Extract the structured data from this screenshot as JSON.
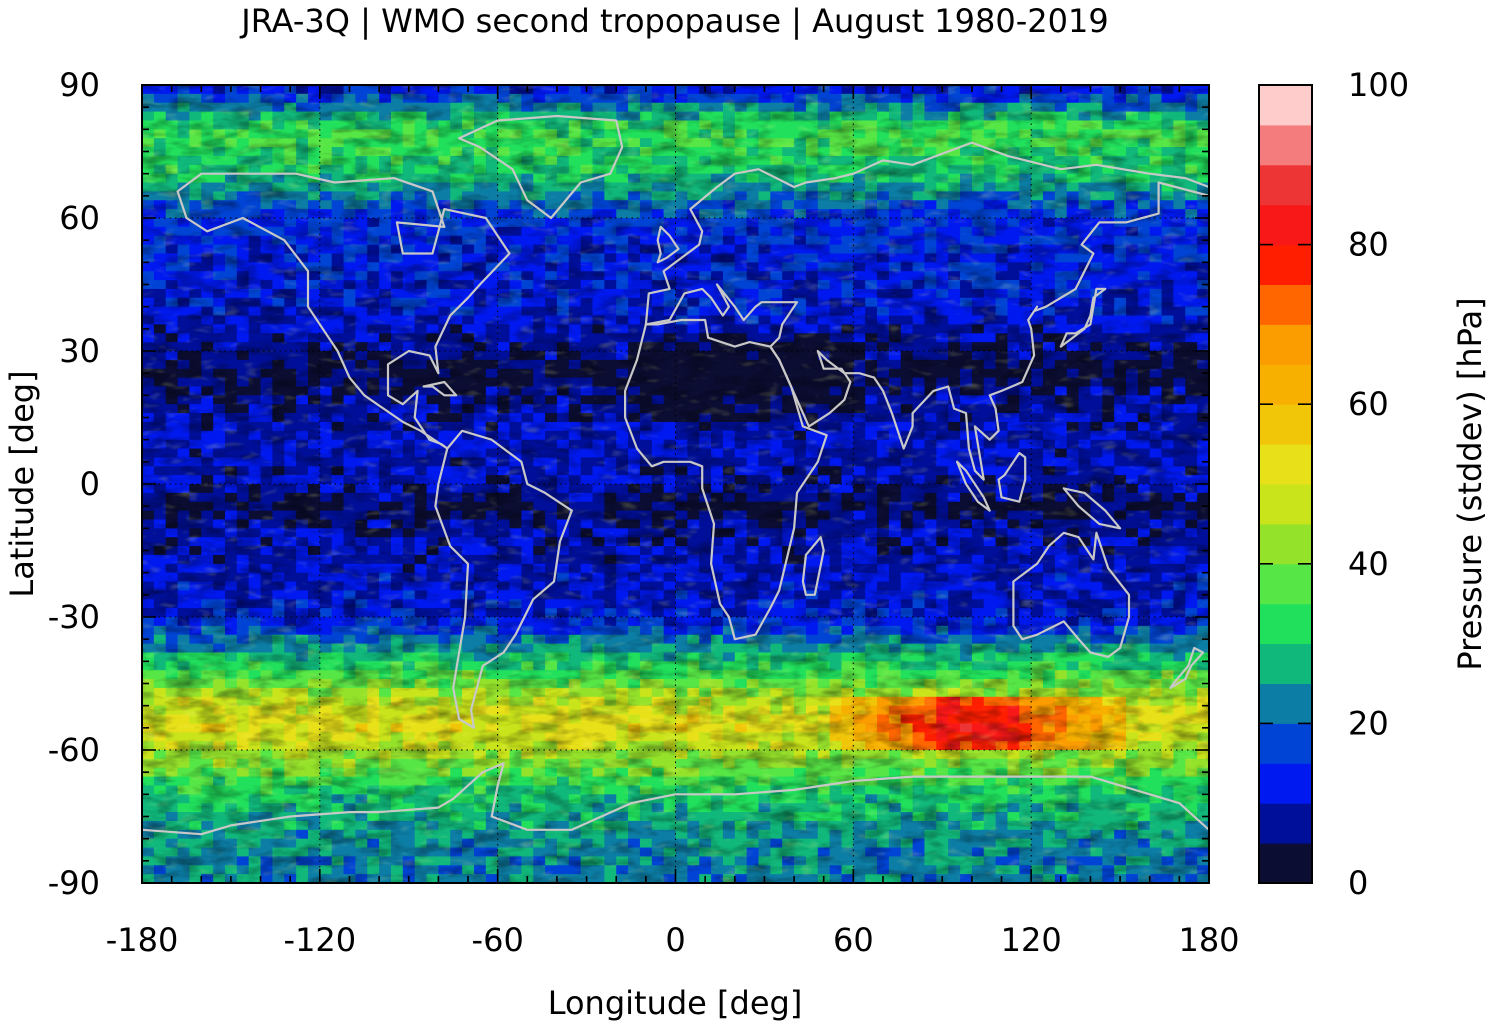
{
  "chart_data": {
    "type": "heatmap",
    "title": "JRA-3Q | WMO second tropopause | August 1980-2019",
    "xlabel": "Longitude [deg]",
    "ylabel": "Latitude [deg]",
    "colorbar_label": "Pressure (stddev) [hPa]",
    "xlim": [
      -180,
      180
    ],
    "ylim": [
      -90,
      90
    ],
    "xticks": [
      "-180",
      "-120",
      "-60",
      "0",
      "60",
      "120",
      "180"
    ],
    "yticks": [
      "90",
      "60",
      "30",
      "0",
      "-30",
      "-60",
      "-90"
    ],
    "colorbar_range": [
      0,
      100
    ],
    "colorbar_ticks": [
      "100",
      "80",
      "60",
      "40",
      "20",
      "0"
    ],
    "colorbar_levels": [
      {
        "from": 0,
        "to": 5,
        "color": "#0b0d33"
      },
      {
        "from": 5,
        "to": 10,
        "color": "#000f9a"
      },
      {
        "from": 10,
        "to": 15,
        "color": "#0019f0"
      },
      {
        "from": 15,
        "to": 20,
        "color": "#0044d6"
      },
      {
        "from": 20,
        "to": 25,
        "color": "#0c7ea6"
      },
      {
        "from": 25,
        "to": 30,
        "color": "#10b87b"
      },
      {
        "from": 30,
        "to": 35,
        "color": "#20e05c"
      },
      {
        "from": 35,
        "to": 40,
        "color": "#56e645"
      },
      {
        "from": 40,
        "to": 45,
        "color": "#95e22a"
      },
      {
        "from": 45,
        "to": 50,
        "color": "#c9e41a"
      },
      {
        "from": 50,
        "to": 55,
        "color": "#e8e018"
      },
      {
        "from": 55,
        "to": 60,
        "color": "#f2c608"
      },
      {
        "from": 60,
        "to": 65,
        "color": "#f7b000"
      },
      {
        "from": 65,
        "to": 70,
        "color": "#fb9c00"
      },
      {
        "from": 70,
        "to": 75,
        "color": "#ff6600"
      },
      {
        "from": 75,
        "to": 80,
        "color": "#ff1e00"
      },
      {
        "from": 80,
        "to": 85,
        "color": "#f81818"
      },
      {
        "from": 85,
        "to": 90,
        "color": "#ee3535"
      },
      {
        "from": 90,
        "to": 95,
        "color": "#f57c7c"
      },
      {
        "from": 95,
        "to": 100,
        "color": "#ffcccc"
      }
    ],
    "zonal_mean_profile": {
      "lat": [
        -90,
        -80,
        -70,
        -60,
        -55,
        -50,
        -40,
        -30,
        -20,
        -10,
        -5,
        0,
        10,
        20,
        25,
        30,
        40,
        50,
        60,
        70,
        80,
        90
      ],
      "values": [
        22,
        24,
        30,
        45,
        52,
        48,
        30,
        12,
        10,
        8,
        4,
        9,
        10,
        7,
        3,
        6,
        12,
        13,
        15,
        30,
        35,
        10
      ]
    },
    "grid": true,
    "coastlines": true
  }
}
